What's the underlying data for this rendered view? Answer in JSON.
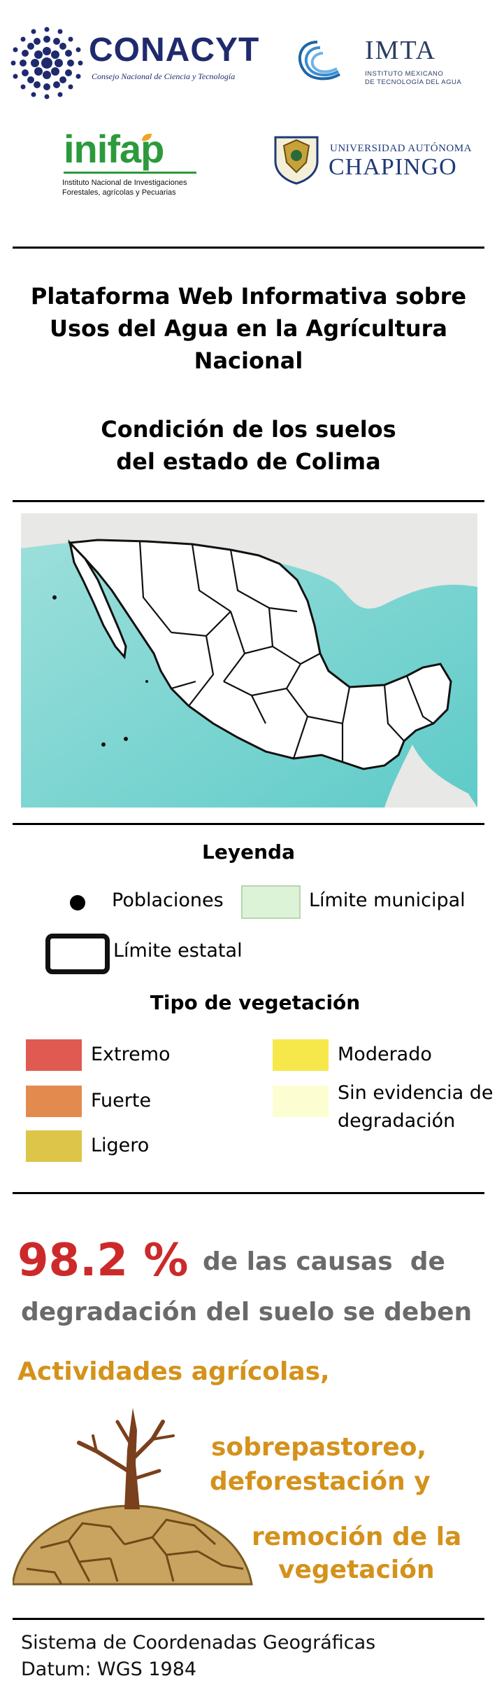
{
  "logos": {
    "conacyt": {
      "name": "CONACYT",
      "tagline": "Consejo Nacional de Ciencia y Tecnología"
    },
    "imta": {
      "name": "IMTA",
      "line1": "INSTITUTO MEXICANO",
      "line2": "DE TECNOLOGÍA DEL AGUA"
    },
    "inifap": {
      "name": "inifap",
      "line1": "Instituto Nacional de Investigaciones",
      "line2": "Forestales, agrícolas y Pecuarias"
    },
    "chapingo": {
      "line1": "UNIVERSIDAD AUTÓNOMA",
      "line2": "CHAPINGO"
    }
  },
  "header": {
    "title_lines": [
      "Plataforma Web Informativa sobre",
      "Usos del Agua en la Agrícultura",
      "Nacional"
    ],
    "subtitle_lines": [
      "Condición de los suelos",
      "del estado de Colima"
    ]
  },
  "legend": {
    "heading": "Leyenda",
    "poblaciones": "Poblaciones",
    "limite_municipal": "Límite municipal",
    "limite_estatal": "Límite estatal",
    "veg_heading": "Tipo de vegetación",
    "categories": [
      {
        "label": "Extremo",
        "color": "#e05a52"
      },
      {
        "label": "Fuerte",
        "color": "#e38b4e"
      },
      {
        "label": "Ligero",
        "color": "#ddc54a"
      },
      {
        "label": "Moderado",
        "color": "#f6e84b"
      },
      {
        "label_line1": "Sin evidencia de",
        "label_line2": "degradación",
        "color": "#fdfdd2"
      }
    ],
    "municipal_color": "#dcf3d8",
    "sea_color": "#6fd3d0"
  },
  "stats": {
    "percent": "98.2 %",
    "line1_rest": "de las causas  de",
    "line2": "degradación del suelo se deben",
    "causes": [
      "Actividades agrícolas,",
      "sobrepastoreo,",
      "deforestación y",
      "remoción de la",
      "vegetación"
    ],
    "percent_color": "#cc2a2a",
    "cause_color": "#d4921c"
  },
  "footer": {
    "line1": "Sistema de Coordenadas Geográficas",
    "line2": "Datum: WGS 1984"
  }
}
